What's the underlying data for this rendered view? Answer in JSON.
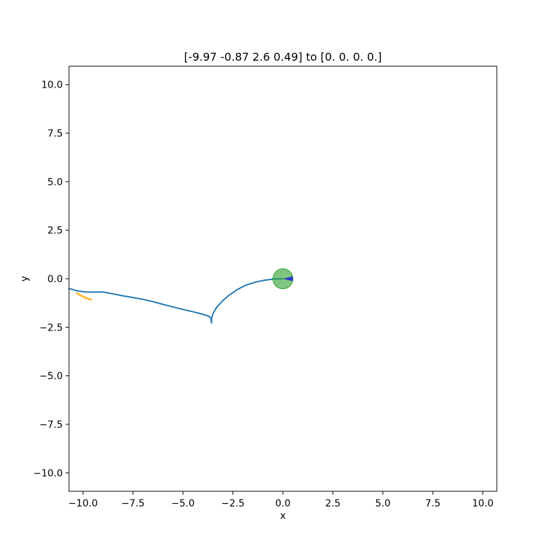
{
  "chart_data": {
    "type": "line",
    "title": "[-9.97 -0.87  2.6   0.49] to [0. 0. 0. 0.]",
    "xlabel": "x",
    "ylabel": "y",
    "xlim": [
      -10.7,
      10.7
    ],
    "ylim": [
      -10.95,
      10.95
    ],
    "xticks": [
      {
        "value": -10.0,
        "label": "−10.0"
      },
      {
        "value": -7.5,
        "label": "−7.5"
      },
      {
        "value": -5.0,
        "label": "−5.0"
      },
      {
        "value": -2.5,
        "label": "−2.5"
      },
      {
        "value": 0.0,
        "label": "0.0"
      },
      {
        "value": 2.5,
        "label": "2.5"
      },
      {
        "value": 5.0,
        "label": "5.0"
      },
      {
        "value": 7.5,
        "label": "7.5"
      },
      {
        "value": 10.0,
        "label": "10.0"
      }
    ],
    "yticks": [
      {
        "value": -10.0,
        "label": "−10.0"
      },
      {
        "value": -7.5,
        "label": "−7.5"
      },
      {
        "value": -5.0,
        "label": "−5.0"
      },
      {
        "value": -2.5,
        "label": "−2.5"
      },
      {
        "value": 0.0,
        "label": "0.0"
      },
      {
        "value": 2.5,
        "label": "2.5"
      },
      {
        "value": 5.0,
        "label": "5.0"
      },
      {
        "value": 7.5,
        "label": "7.5"
      },
      {
        "value": 10.0,
        "label": "10.0"
      }
    ],
    "grid": false,
    "series": [
      {
        "color": "#1f77b4",
        "points": [
          [
            -10.7,
            -0.5
          ],
          [
            -10.3,
            -0.62
          ],
          [
            -9.9,
            -0.68
          ],
          [
            -9.4,
            -0.69
          ],
          [
            -9.0,
            -0.68
          ],
          [
            -8.5,
            -0.78
          ],
          [
            -8.0,
            -0.88
          ],
          [
            -7.5,
            -0.97
          ],
          [
            -7.0,
            -1.06
          ],
          [
            -6.5,
            -1.18
          ],
          [
            -6.0,
            -1.32
          ],
          [
            -5.5,
            -1.45
          ],
          [
            -5.0,
            -1.58
          ],
          [
            -4.5,
            -1.7
          ],
          [
            -4.0,
            -1.83
          ],
          [
            -3.7,
            -1.93
          ],
          [
            -3.6,
            -2.05
          ],
          [
            -3.57,
            -2.28
          ],
          [
            -3.57,
            -2.05
          ],
          [
            -3.5,
            -1.8
          ],
          [
            -3.3,
            -1.45
          ],
          [
            -3.0,
            -1.12
          ],
          [
            -2.7,
            -0.85
          ],
          [
            -2.3,
            -0.57
          ],
          [
            -1.9,
            -0.35
          ],
          [
            -1.4,
            -0.18
          ],
          [
            -0.9,
            -0.07
          ],
          [
            -0.4,
            -0.01
          ],
          [
            0.0,
            0.0
          ]
        ]
      },
      {
        "color": "#ffa500",
        "points": [
          [
            -10.3,
            -0.75
          ],
          [
            -9.95,
            -0.95
          ],
          [
            -9.6,
            -1.08
          ]
        ]
      }
    ],
    "markers": [
      {
        "shape": "circle",
        "center": [
          0.0,
          0.0
        ],
        "radius": 0.5,
        "color": "#2ca02c"
      },
      {
        "shape": "wedge",
        "apex": [
          0.0,
          0.0
        ],
        "tip_a": [
          0.5,
          0.13
        ],
        "tip_b": [
          0.5,
          -0.13
        ],
        "color": "#1f1fd6"
      }
    ]
  }
}
